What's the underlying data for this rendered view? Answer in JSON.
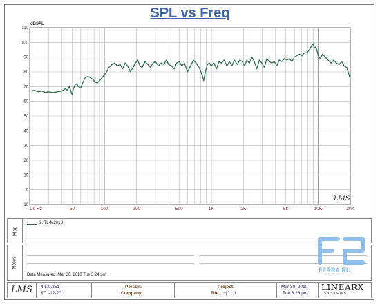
{
  "header": {
    "title": "SPL vs Freq"
  },
  "chart_data": {
    "type": "line",
    "title": "SPL vs Freq",
    "ylabel": "dBSPL",
    "xlabel": "",
    "x_scale": "log",
    "xlim": [
      20,
      20000
    ],
    "ylim": [
      -10,
      110
    ],
    "grid": true,
    "x_tick_labels": [
      {
        "value": 20,
        "label": "20 Hz"
      },
      {
        "value": 50,
        "label": "50"
      },
      {
        "value": 100,
        "label": "100"
      },
      {
        "value": 200,
        "label": "200"
      },
      {
        "value": 500,
        "label": "500"
      },
      {
        "value": 1000,
        "label": "1K"
      },
      {
        "value": 2000,
        "label": "2K"
      },
      {
        "value": 5000,
        "label": "5K"
      },
      {
        "value": 10000,
        "label": "10K"
      },
      {
        "value": 20000,
        "label": "20K"
      }
    ],
    "y_ticks": [
      -10,
      0,
      10,
      20,
      30,
      40,
      50,
      60,
      70,
      80,
      90,
      100,
      110
    ],
    "series": [
      {
        "name": "2: TL-M2018",
        "color": "#2e6e4e",
        "points": [
          [
            20,
            67
          ],
          [
            22,
            67.5
          ],
          [
            24,
            66.5
          ],
          [
            26,
            67
          ],
          [
            28,
            66
          ],
          [
            30,
            66.5
          ],
          [
            33,
            66
          ],
          [
            36,
            66.5
          ],
          [
            40,
            67
          ],
          [
            43,
            68.5
          ],
          [
            45,
            67.5
          ],
          [
            47,
            70
          ],
          [
            49,
            66
          ],
          [
            50,
            64.5
          ],
          [
            51,
            68
          ],
          [
            53,
            71
          ],
          [
            55,
            72
          ],
          [
            57,
            70
          ],
          [
            60,
            69
          ],
          [
            63,
            73
          ],
          [
            66,
            76
          ],
          [
            70,
            77
          ],
          [
            74,
            76
          ],
          [
            78,
            75
          ],
          [
            82,
            73
          ],
          [
            86,
            72.5
          ],
          [
            90,
            74
          ],
          [
            95,
            76
          ],
          [
            100,
            78
          ],
          [
            105,
            80
          ],
          [
            110,
            83
          ],
          [
            118,
            85
          ],
          [
            125,
            86
          ],
          [
            132,
            84
          ],
          [
            140,
            85
          ],
          [
            148,
            82
          ],
          [
            156,
            86
          ],
          [
            165,
            84
          ],
          [
            175,
            80
          ],
          [
            185,
            83
          ],
          [
            195,
            86
          ],
          [
            205,
            88
          ],
          [
            215,
            84
          ],
          [
            225,
            83
          ],
          [
            240,
            87
          ],
          [
            255,
            85
          ],
          [
            270,
            83
          ],
          [
            285,
            86
          ],
          [
            300,
            87
          ],
          [
            320,
            84
          ],
          [
            340,
            86
          ],
          [
            360,
            85
          ],
          [
            380,
            88
          ],
          [
            400,
            85
          ],
          [
            425,
            84
          ],
          [
            450,
            82
          ],
          [
            475,
            86
          ],
          [
            500,
            87
          ],
          [
            530,
            84
          ],
          [
            560,
            86
          ],
          [
            600,
            80
          ],
          [
            640,
            84
          ],
          [
            680,
            88
          ],
          [
            720,
            86
          ],
          [
            770,
            83
          ],
          [
            820,
            78
          ],
          [
            850,
            74
          ],
          [
            880,
            80
          ],
          [
            920,
            85
          ],
          [
            960,
            86
          ],
          [
            1000,
            84
          ],
          [
            1060,
            86
          ],
          [
            1120,
            82
          ],
          [
            1180,
            87
          ],
          [
            1250,
            86
          ],
          [
            1320,
            88
          ],
          [
            1400,
            84
          ],
          [
            1480,
            87
          ],
          [
            1560,
            84
          ],
          [
            1650,
            88
          ],
          [
            1750,
            85
          ],
          [
            1850,
            88
          ],
          [
            1950,
            87
          ],
          [
            2050,
            84
          ],
          [
            2150,
            88
          ],
          [
            2270,
            86
          ],
          [
            2400,
            90
          ],
          [
            2530,
            87
          ],
          [
            2670,
            82
          ],
          [
            2820,
            88
          ],
          [
            2970,
            86
          ],
          [
            3140,
            83
          ],
          [
            3310,
            89
          ],
          [
            3490,
            87
          ],
          [
            3680,
            86
          ],
          [
            3890,
            87
          ],
          [
            4100,
            84
          ],
          [
            4330,
            88
          ],
          [
            4570,
            87
          ],
          [
            4830,
            89
          ],
          [
            5100,
            88
          ],
          [
            5380,
            89
          ],
          [
            5680,
            87
          ],
          [
            6000,
            90
          ],
          [
            6330,
            91
          ],
          [
            6680,
            92
          ],
          [
            7050,
            91
          ],
          [
            7440,
            93
          ],
          [
            7860,
            93
          ],
          [
            8290,
            95
          ],
          [
            8750,
            98
          ],
          [
            9000,
            99
          ],
          [
            9250,
            96
          ],
          [
            9500,
            97
          ],
          [
            9800,
            94
          ],
          [
            10000,
            91
          ],
          [
            10500,
            89
          ],
          [
            11000,
            92
          ],
          [
            11700,
            90
          ],
          [
            12400,
            88
          ],
          [
            13200,
            86
          ],
          [
            14000,
            88
          ],
          [
            14800,
            86
          ],
          [
            15700,
            85
          ],
          [
            16600,
            87
          ],
          [
            17500,
            84
          ],
          [
            18500,
            83
          ],
          [
            19300,
            79
          ],
          [
            20000,
            75
          ]
        ]
      }
    ]
  },
  "map_panel": {
    "label": "Map",
    "legend_entry": "2: TL-M2018"
  },
  "notes_panel": {
    "label": "Notes",
    "data_measured": "Data Measured: Mar 30, 2010  Tue  3:24 pm"
  },
  "footer": {
    "logo_text": "LMS",
    "version": "4.5.0.351",
    "version_sub": "¶  ˇ .-12-20",
    "person_label": "Person:",
    "company_label": "Company:",
    "project_label": "Project:",
    "file_label": "File:",
    "file_value": "~|  ˇ  , .I",
    "date": "Mar 30, 2010",
    "datetime": "Tue  3:26 pm",
    "brand": "LINEARX",
    "brand_sub": "S Y S T E M S"
  },
  "watermark": {
    "text": "FERRA.RU"
  }
}
